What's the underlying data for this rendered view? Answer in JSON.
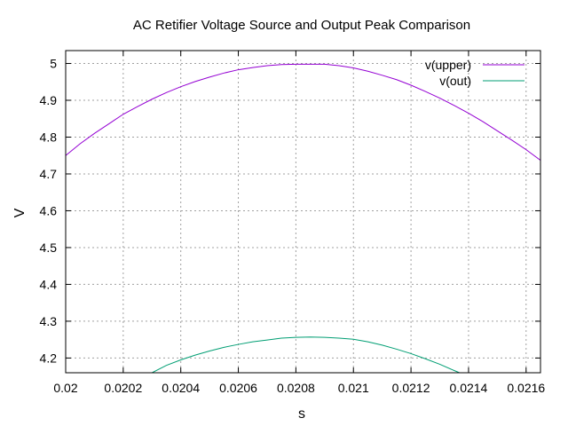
{
  "chart_data": {
    "type": "line",
    "title": "AC Retifier Voltage Source and Output Peak Comparison",
    "xlabel": "s",
    "ylabel": "V",
    "xlim": [
      0.02,
      0.02165
    ],
    "ylim": [
      4.16,
      5.035
    ],
    "x_ticks": [
      0.02,
      0.0202,
      0.0204,
      0.0206,
      0.0208,
      0.021,
      0.0212,
      0.0214,
      0.0216
    ],
    "x_tick_labels": [
      "0.02",
      "0.0202",
      "0.0204",
      "0.0206",
      "0.0208",
      "0.021",
      "0.0212",
      "0.0214",
      "0.0216"
    ],
    "y_ticks": [
      4.2,
      4.3,
      4.4,
      4.5,
      4.6,
      4.7,
      4.8,
      4.9,
      5.0
    ],
    "y_tick_labels": [
      "4.2",
      "4.3",
      "4.4",
      "4.5",
      "4.6",
      "4.7",
      "4.8",
      "4.9",
      "5"
    ],
    "grid": true,
    "legend_position": "top-right",
    "series": [
      {
        "name": "v(upper)",
        "color": "#9400d3",
        "x": [
          0.02,
          0.02005,
          0.0201,
          0.02015,
          0.0202,
          0.02025,
          0.0203,
          0.02035,
          0.0204,
          0.02045,
          0.0205,
          0.02055,
          0.0206,
          0.02065,
          0.0207,
          0.02075,
          0.0208,
          0.02085,
          0.0209,
          0.02095,
          0.021,
          0.02105,
          0.0211,
          0.02115,
          0.0212,
          0.02125,
          0.0213,
          0.02135,
          0.0214,
          0.02145,
          0.0215,
          0.02155,
          0.0216,
          0.02165
        ],
        "y": [
          4.75,
          4.782,
          4.81,
          4.836,
          4.862,
          4.883,
          4.903,
          4.921,
          4.937,
          4.951,
          4.963,
          4.974,
          4.983,
          4.989,
          4.994,
          4.997,
          4.998,
          4.998,
          4.998,
          4.994,
          4.988,
          4.979,
          4.968,
          4.956,
          4.941,
          4.924,
          4.906,
          4.886,
          4.865,
          4.842,
          4.817,
          4.792,
          4.766,
          4.737
        ]
      },
      {
        "name": "v(out)",
        "color": "#009e73",
        "x": [
          0.0203,
          0.02035,
          0.0204,
          0.02045,
          0.0205,
          0.02055,
          0.0206,
          0.02065,
          0.0207,
          0.02075,
          0.0208,
          0.02085,
          0.0209,
          0.02095,
          0.021,
          0.02105,
          0.0211,
          0.02115,
          0.0212,
          0.02125,
          0.0213,
          0.02135,
          0.0214
        ],
        "y": [
          4.16,
          4.18,
          4.195,
          4.208,
          4.219,
          4.229,
          4.237,
          4.244,
          4.249,
          4.254,
          4.256,
          4.257,
          4.256,
          4.254,
          4.251,
          4.244,
          4.235,
          4.224,
          4.212,
          4.198,
          4.183,
          4.166,
          4.15
        ]
      }
    ]
  }
}
